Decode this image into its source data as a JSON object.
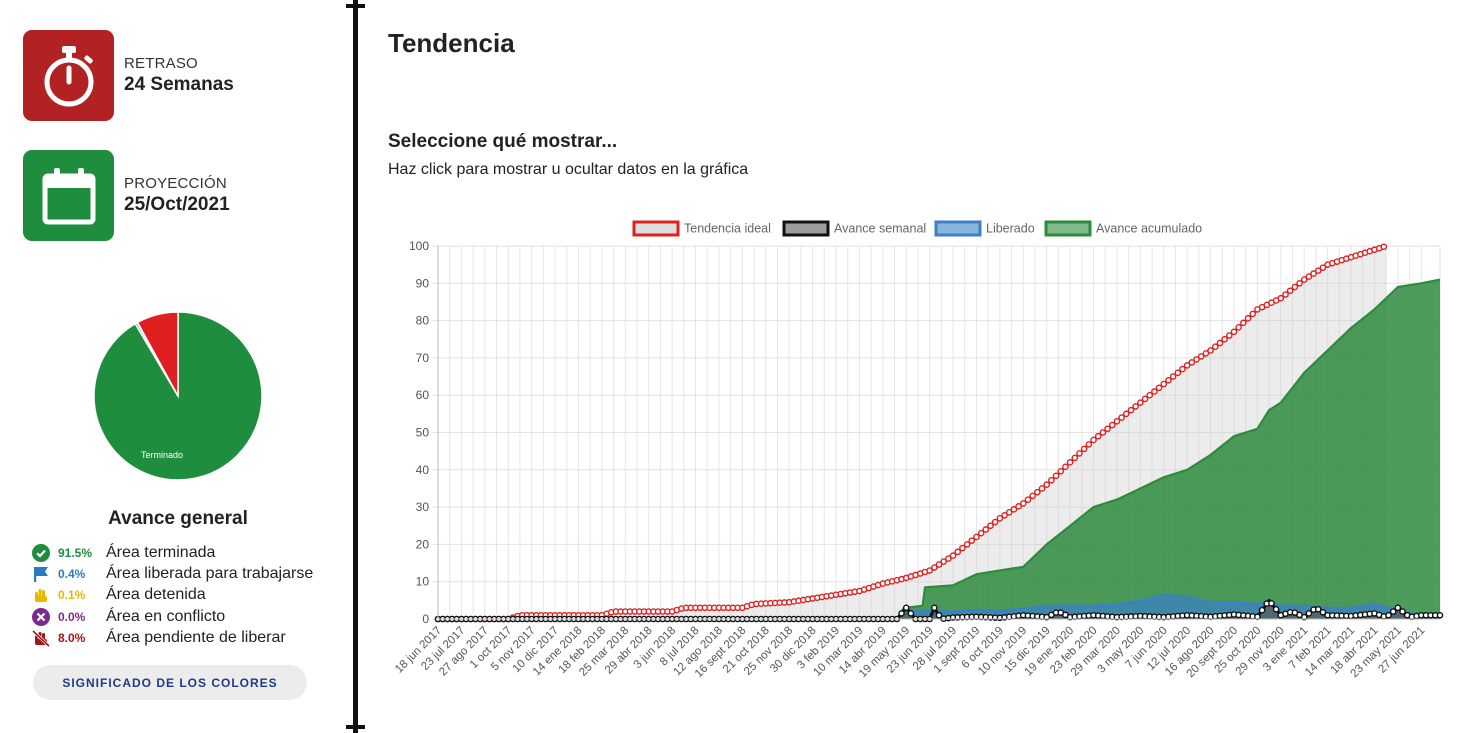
{
  "kpis": {
    "delay": {
      "label": "RETRASO",
      "value": "24 Semanas",
      "color": "#b22222",
      "icon": "stopwatch-icon"
    },
    "projection": {
      "label": "PROYECCIÓN",
      "value": "25/Oct/2021",
      "color": "#1e8e3e",
      "icon": "calendar-icon"
    }
  },
  "pie": {
    "slices": [
      {
        "name": "Terminado",
        "value": 91.5,
        "color": "#1e8e3e"
      },
      {
        "name": "Liberado",
        "value": 0.4,
        "color": "#3b82c4"
      },
      {
        "name": "Detenido",
        "value": 0.1,
        "color": "#e6b800"
      },
      {
        "name": "Pendiente",
        "value": 8.0,
        "color": "#e02020"
      }
    ],
    "label": "Terminado"
  },
  "avance": {
    "title": "Avance general",
    "items": [
      {
        "pct": "91.5%",
        "label": "Área terminada",
        "color": "#1e8e3e",
        "icon": "check-circle-icon"
      },
      {
        "pct": "0.4%",
        "label": "Área liberada para trabajarse",
        "color": "#2b7bc0",
        "icon": "flag-icon"
      },
      {
        "pct": "0.1%",
        "label": "Área detenida",
        "color": "#e6b800",
        "icon": "hand-stop-icon"
      },
      {
        "pct": "0.0%",
        "label": "Área en conflicto",
        "color": "#7b2a8c",
        "icon": "x-circle-icon"
      },
      {
        "pct": "8.0%",
        "label": "Área pendiente de liberar",
        "color": "#a31515",
        "icon": "hand-slash-icon"
      }
    ],
    "button_label": "SIGNIFICADO DE LOS COLORES"
  },
  "main": {
    "title": "Tendencia",
    "subtitle": "Seleccione qué mostrar...",
    "description": "Haz click para mostrar u ocultar datos en la gráfica"
  },
  "chart_data": {
    "type": "area",
    "ylim": [
      0,
      100
    ],
    "yticks": [
      0,
      10,
      20,
      30,
      40,
      50,
      60,
      70,
      80,
      90,
      100
    ],
    "grid": true,
    "legend_position": "top",
    "x_tick_labels": [
      "18 jun 2017",
      "23 jul 2017",
      "27 ago 2017",
      "1 oct 2017",
      "5 nov 2017",
      "10 dic 2017",
      "14 ene 2018",
      "18 feb 2018",
      "25 mar 2018",
      "29 abr 2018",
      "3 jun 2018",
      "8 jul 2018",
      "12 ago 2018",
      "16 sept 2018",
      "21 oct 2018",
      "25 nov 2018",
      "30 dic 2018",
      "3 feb 2019",
      "10 mar 2019",
      "14 abr 2019",
      "19 may 2019",
      "23 jun 2019",
      "28 jul 2019",
      "1 sept 2019",
      "6 oct 2019",
      "10 nov 2019",
      "15 dic 2019",
      "19 ene 2020",
      "23 feb 2020",
      "29 mar 2020",
      "3 may 2020",
      "7 jun 2020",
      "12 jul 2020",
      "16 ago 2020",
      "20 sept 2020",
      "25 oct 2020",
      "29 nov 2020",
      "3 ene 2021",
      "7 feb 2021",
      "14 mar 2021",
      "18 abr 2021",
      "23 may 2021",
      "27 jun 2021"
    ],
    "series": [
      {
        "name": "Tendencia ideal",
        "color": "#e02020",
        "fill": "rgba(200,200,200,0.35)",
        "points": [
          [
            0,
            0
          ],
          [
            3,
            0
          ],
          [
            3.5,
            1
          ],
          [
            7,
            1
          ],
          [
            7.5,
            2
          ],
          [
            10,
            2
          ],
          [
            10.5,
            3
          ],
          [
            13,
            3
          ],
          [
            13.5,
            4
          ],
          [
            15,
            4.5
          ],
          [
            16,
            5.5
          ],
          [
            17,
            6.5
          ],
          [
            18,
            7.5
          ],
          [
            19,
            9.5
          ],
          [
            20,
            11
          ],
          [
            21,
            13
          ],
          [
            22,
            17
          ],
          [
            23,
            22
          ],
          [
            24,
            27
          ],
          [
            25,
            31
          ],
          [
            26,
            36
          ],
          [
            27,
            42
          ],
          [
            28,
            48
          ],
          [
            29,
            53
          ],
          [
            30,
            58
          ],
          [
            31,
            63
          ],
          [
            32,
            68
          ],
          [
            33,
            72
          ],
          [
            34,
            77
          ],
          [
            35,
            83
          ],
          [
            36,
            86
          ],
          [
            37,
            91
          ],
          [
            38,
            95
          ],
          [
            39,
            97
          ],
          [
            40,
            99
          ],
          [
            40.5,
            100
          ]
        ]
      },
      {
        "name": "Avance semanal",
        "color": "#111111",
        "fill": "rgba(90,90,90,0.7)",
        "points": [
          [
            0,
            0
          ],
          [
            19.6,
            0
          ],
          [
            20,
            3
          ],
          [
            20.4,
            0
          ],
          [
            21,
            0
          ],
          [
            21.2,
            3
          ],
          [
            21.5,
            0
          ],
          [
            22,
            0.4
          ],
          [
            23,
            0.6
          ],
          [
            24,
            0.3
          ],
          [
            25,
            1
          ],
          [
            26,
            0.5
          ],
          [
            26.5,
            2
          ],
          [
            27,
            0.5
          ],
          [
            28,
            1
          ],
          [
            29,
            0.5
          ],
          [
            30,
            0.8
          ],
          [
            31,
            0.5
          ],
          [
            32,
            1
          ],
          [
            33,
            0.6
          ],
          [
            34,
            1.2
          ],
          [
            35,
            0.6
          ],
          [
            35.5,
            5
          ],
          [
            36,
            1
          ],
          [
            36.5,
            2
          ],
          [
            37,
            0.5
          ],
          [
            37.5,
            3
          ],
          [
            38,
            1
          ],
          [
            39,
            0.8
          ],
          [
            40,
            1.5
          ],
          [
            40.5,
            0.5
          ],
          [
            41,
            3
          ],
          [
            41.5,
            0.5
          ],
          [
            42,
            1
          ],
          [
            42.8,
            1
          ]
        ]
      },
      {
        "name": "Liberado",
        "color": "#3b82c4",
        "fill": "rgba(59,130,196,0.75)",
        "points": [
          [
            0,
            0
          ],
          [
            19.6,
            0
          ],
          [
            20,
            2.5
          ],
          [
            21,
            2.2
          ],
          [
            22,
            2
          ],
          [
            23,
            2.5
          ],
          [
            24,
            2.2
          ],
          [
            25,
            2.8
          ],
          [
            26,
            3.5
          ],
          [
            27,
            3.5
          ],
          [
            28,
            3.5
          ],
          [
            29,
            4
          ],
          [
            30,
            5
          ],
          [
            31,
            6.5
          ],
          [
            32,
            6
          ],
          [
            33,
            4.5
          ],
          [
            34,
            4.5
          ],
          [
            35,
            4
          ],
          [
            35.5,
            5
          ],
          [
            36,
            3.5
          ],
          [
            37,
            3.5
          ],
          [
            38,
            3
          ],
          [
            39,
            3
          ],
          [
            40,
            4
          ],
          [
            41,
            2.5
          ],
          [
            42,
            1
          ],
          [
            42.8,
            0.5
          ]
        ]
      },
      {
        "name": "Avance acumulado",
        "color": "#2e8b3e",
        "fill": "rgba(46,139,62,0.85)",
        "points": [
          [
            0,
            0
          ],
          [
            19.6,
            0
          ],
          [
            19.9,
            3
          ],
          [
            20.7,
            3.5
          ],
          [
            20.8,
            8.5
          ],
          [
            22,
            9
          ],
          [
            23,
            12
          ],
          [
            24,
            13
          ],
          [
            25,
            14
          ],
          [
            26,
            20
          ],
          [
            27,
            25
          ],
          [
            28,
            30
          ],
          [
            29,
            32
          ],
          [
            30,
            35
          ],
          [
            31,
            38
          ],
          [
            32,
            40
          ],
          [
            33,
            44
          ],
          [
            34,
            49
          ],
          [
            35,
            51
          ],
          [
            35.5,
            56
          ],
          [
            36,
            58
          ],
          [
            37,
            66
          ],
          [
            38,
            72
          ],
          [
            39,
            78
          ],
          [
            40,
            83
          ],
          [
            41,
            89
          ],
          [
            42,
            90
          ],
          [
            42.8,
            91
          ]
        ]
      }
    ]
  }
}
